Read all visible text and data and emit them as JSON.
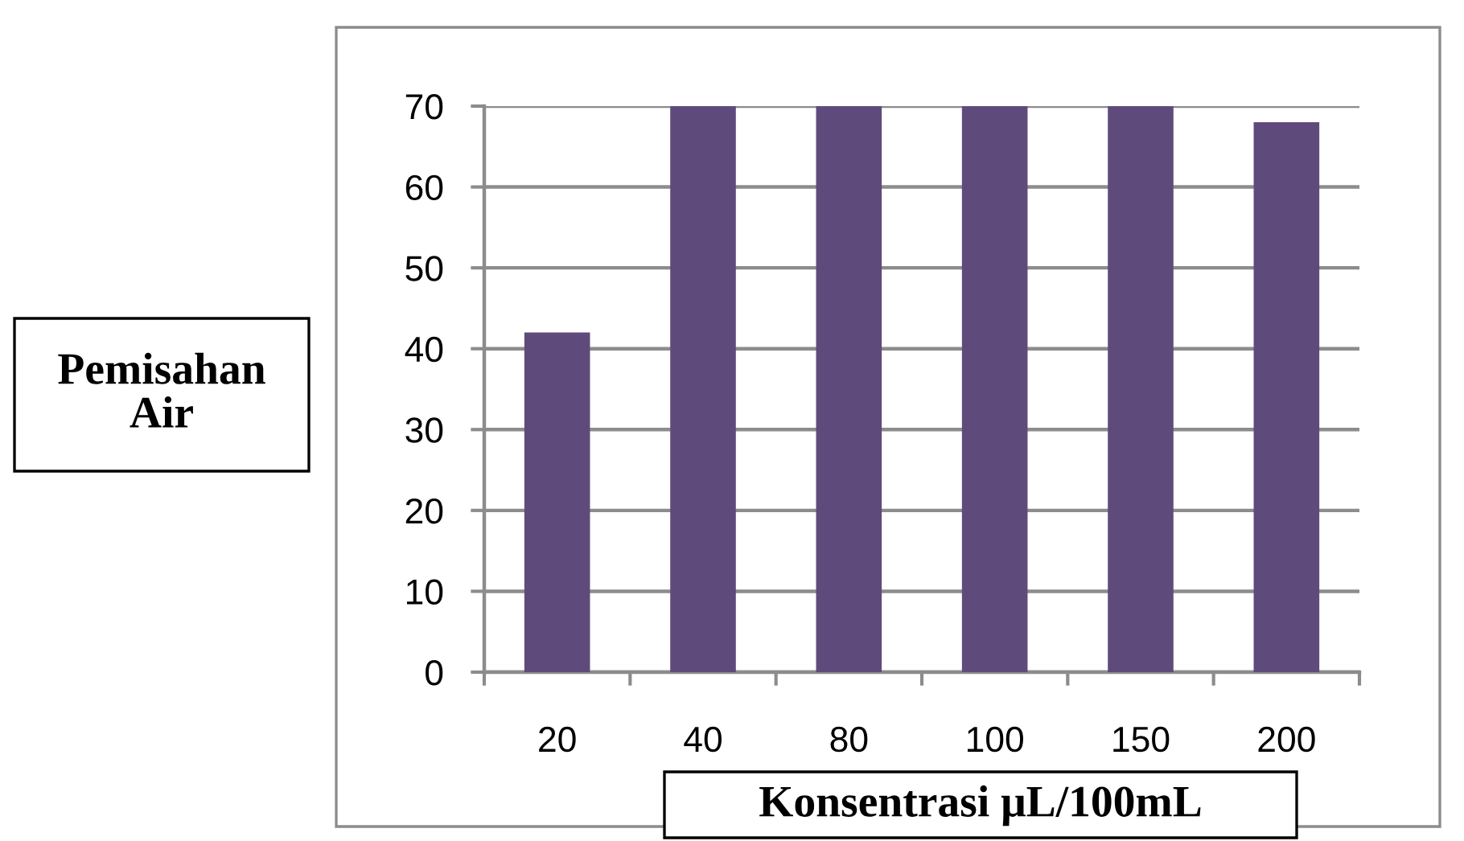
{
  "chart_data": {
    "type": "bar",
    "categories": [
      "20",
      "40",
      "80",
      "100",
      "150",
      "200"
    ],
    "values": [
      42,
      70,
      70,
      70,
      70,
      68
    ],
    "color": "#5f4b7b",
    "ylim": [
      0,
      70
    ],
    "yticks": [
      0,
      10,
      20,
      30,
      40,
      50,
      60,
      70
    ],
    "grid": "y",
    "xlabel": "Konsentrasi μL/100mL",
    "ylabel": "Pemisahan\nAir"
  }
}
